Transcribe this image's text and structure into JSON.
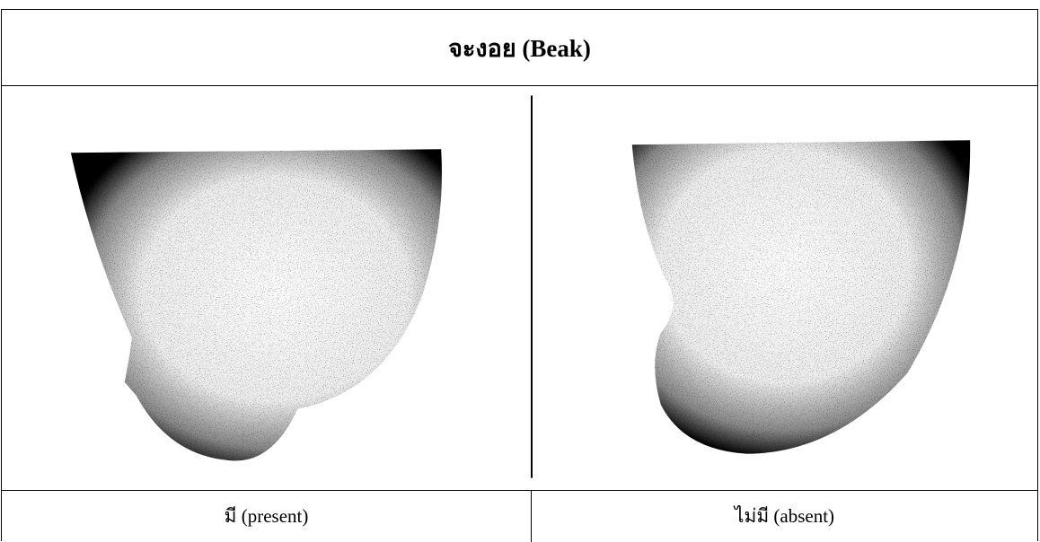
{
  "header": {
    "title": "จะงอย (Beak)"
  },
  "captions": [
    "มี (present)",
    "ไม่มี (absent)"
  ]
}
